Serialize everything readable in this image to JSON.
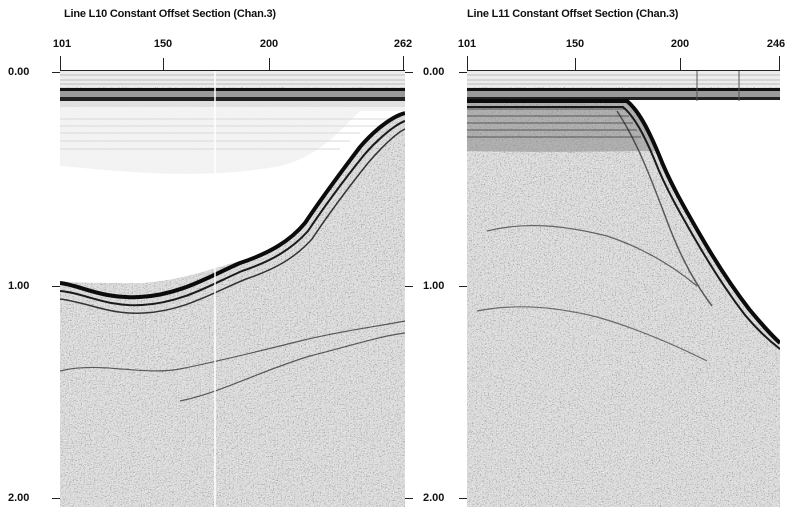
{
  "sections": [
    {
      "title": "Line L10 Constant Offset Section (Chan.3)",
      "x_ticks": [
        "101",
        "150",
        "200",
        "262"
      ],
      "y_ticks": [
        "0.00",
        "1.00",
        "2.00"
      ]
    },
    {
      "title": "Line L11 Constant Offset Section (Chan.3)",
      "x_ticks": [
        "101",
        "150",
        "200",
        "246"
      ],
      "y_ticks": [
        "0.00",
        "1.00",
        "2.00"
      ]
    }
  ]
}
